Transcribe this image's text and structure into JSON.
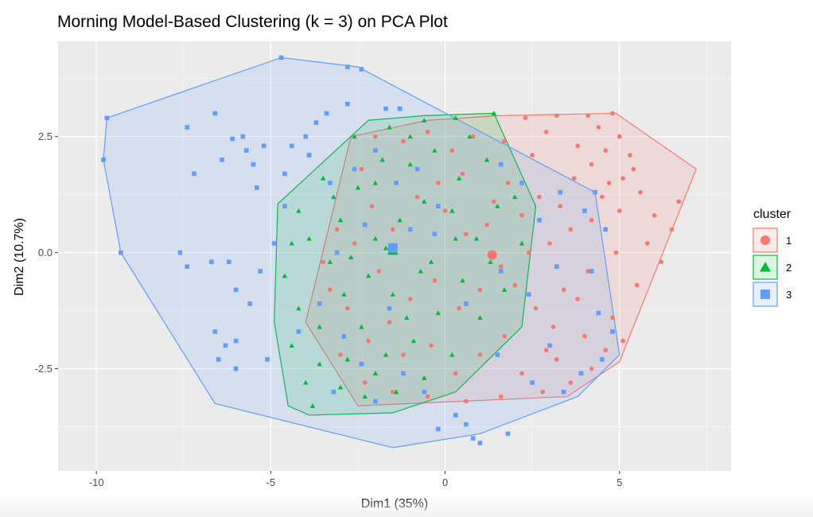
{
  "chart_data": {
    "type": "scatter",
    "title": "Morning Model-Based Clustering (k = 3) on PCA Plot",
    "xlabel": "Dim1 (35%)",
    "ylabel": "Dim2 (10.7%)",
    "xlim": [
      -11.1,
      8.2
    ],
    "ylim": [
      -4.7,
      4.55
    ],
    "xticks": [
      -10,
      -5,
      0,
      5
    ],
    "xtick_labels": [
      "-10",
      "-5",
      "0",
      "5"
    ],
    "yticks": [
      -2.5,
      0,
      2.5
    ],
    "ytick_labels": [
      "-2.5",
      "0.0",
      "2.5"
    ],
    "grid": true,
    "legend": {
      "title": "cluster",
      "position": "right"
    },
    "series": [
      {
        "name": "1",
        "color": "#F8766D",
        "shape": "circle",
        "centroid": [
          1.35,
          -0.05
        ],
        "hull": [
          [
            1.5,
            2.95
          ],
          [
            4.9,
            3.0
          ],
          [
            7.2,
            1.8
          ],
          [
            5.0,
            -2.35
          ],
          [
            3.5,
            -3.1
          ],
          [
            -2.5,
            -3.3
          ],
          [
            -4.0,
            -1.5
          ],
          [
            -2.7,
            2.5
          ],
          [
            -0.5,
            2.85
          ]
        ],
        "points": [
          [
            2.3,
            2.9
          ],
          [
            3.2,
            2.95
          ],
          [
            4.1,
            2.95
          ],
          [
            4.8,
            3.0
          ],
          [
            4.4,
            2.7
          ],
          [
            5.0,
            2.5
          ],
          [
            3.8,
            2.3
          ],
          [
            4.6,
            2.2
          ],
          [
            5.3,
            2.1
          ],
          [
            4.2,
            1.9
          ],
          [
            5.1,
            1.6
          ],
          [
            4.7,
            1.5
          ],
          [
            5.6,
            1.3
          ],
          [
            6.7,
            1.1
          ],
          [
            6.5,
            0.5
          ],
          [
            5.8,
            0.2
          ],
          [
            6.2,
            -0.2
          ],
          [
            5.0,
            0.9
          ],
          [
            4.9,
            0.0
          ],
          [
            5.5,
            -0.7
          ],
          [
            4.8,
            -1.4
          ],
          [
            5.1,
            -1.9
          ],
          [
            4.6,
            -2.1
          ],
          [
            4.2,
            -2.5
          ],
          [
            3.6,
            -2.8
          ],
          [
            2.9,
            -2.1
          ],
          [
            3.1,
            -1.6
          ],
          [
            2.6,
            -1.2
          ],
          [
            3.4,
            -0.8
          ],
          [
            3.8,
            -1.0
          ],
          [
            4.1,
            -0.4
          ],
          [
            3.0,
            0.2
          ],
          [
            3.6,
            0.5
          ],
          [
            4.2,
            0.7
          ],
          [
            3.3,
            1.0
          ],
          [
            2.7,
            1.2
          ],
          [
            2.2,
            0.8
          ],
          [
            1.8,
            1.5
          ],
          [
            2.5,
            2.1
          ],
          [
            1.7,
            2.4
          ],
          [
            0.8,
            2.5
          ],
          [
            0.2,
            2.2
          ],
          [
            -0.5,
            2.6
          ],
          [
            -1.2,
            2.4
          ],
          [
            -2.0,
            2.5
          ],
          [
            -2.4,
            1.8
          ],
          [
            -2.1,
            1.0
          ],
          [
            -1.5,
            0.5
          ],
          [
            -0.8,
            1.2
          ],
          [
            0.0,
            0.9
          ],
          [
            0.6,
            0.4
          ],
          [
            1.2,
            0.6
          ],
          [
            1.6,
            -0.3
          ],
          [
            1.0,
            -0.8
          ],
          [
            0.4,
            -1.2
          ],
          [
            -0.3,
            -0.6
          ],
          [
            -1.0,
            -1.0
          ],
          [
            -1.6,
            -1.5
          ],
          [
            -2.2,
            -1.9
          ],
          [
            -2.8,
            -1.2
          ],
          [
            -3.3,
            -0.8
          ],
          [
            -3.5,
            -0.2
          ],
          [
            -3.1,
            0.5
          ],
          [
            -2.6,
            0.2
          ],
          [
            -1.9,
            -0.4
          ],
          [
            -1.2,
            -2.2
          ],
          [
            -0.4,
            -2.0
          ],
          [
            0.3,
            -2.6
          ],
          [
            1.0,
            -2.2
          ],
          [
            1.7,
            -1.8
          ],
          [
            2.2,
            -2.6
          ],
          [
            2.8,
            -3.0
          ],
          [
            1.6,
            -3.1
          ],
          [
            0.6,
            -3.2
          ],
          [
            -0.5,
            -3.1
          ],
          [
            -1.5,
            -3.0
          ],
          [
            -2.3,
            -2.8
          ],
          [
            -3.0,
            -2.2
          ],
          [
            2.0,
            -0.7
          ],
          [
            2.4,
            0.0
          ],
          [
            1.4,
            1.1
          ],
          [
            0.5,
            1.7
          ],
          [
            -0.2,
            1.5
          ],
          [
            3.7,
            1.6
          ],
          [
            4.5,
            1.2
          ],
          [
            4.0,
            -1.8
          ],
          [
            3.2,
            -2.3
          ],
          [
            5.4,
            1.8
          ],
          [
            6.0,
            0.8
          ],
          [
            2.9,
            2.6
          ]
        ]
      },
      {
        "name": "2",
        "color": "#00BA38",
        "shape": "triangle",
        "centroid": [
          -1.5,
          0.05
        ],
        "hull": [
          [
            1.4,
            3.0
          ],
          [
            -0.6,
            2.95
          ],
          [
            -2.2,
            2.85
          ],
          [
            -4.8,
            1.05
          ],
          [
            -4.9,
            -1.5
          ],
          [
            -4.5,
            -3.3
          ],
          [
            -3.9,
            -3.5
          ],
          [
            -1.5,
            -3.45
          ],
          [
            0.3,
            -3.0
          ],
          [
            2.2,
            -1.6
          ],
          [
            2.6,
            1.0
          ]
        ],
        "points": [
          [
            1.4,
            3.0
          ],
          [
            0.3,
            2.9
          ],
          [
            -0.6,
            2.85
          ],
          [
            -1.6,
            2.7
          ],
          [
            -2.6,
            2.5
          ],
          [
            -3.5,
            1.6
          ],
          [
            -4.2,
            0.9
          ],
          [
            -4.4,
            0.2
          ],
          [
            -4.6,
            -0.5
          ],
          [
            -4.2,
            -1.2
          ],
          [
            -4.4,
            -2.0
          ],
          [
            -4.0,
            -2.8
          ],
          [
            -3.8,
            -3.3
          ],
          [
            -3.0,
            -2.9
          ],
          [
            -2.3,
            -3.1
          ],
          [
            -1.4,
            -3.0
          ],
          [
            -0.6,
            -2.7
          ],
          [
            0.2,
            -2.2
          ],
          [
            1.0,
            -1.4
          ],
          [
            1.7,
            -0.8
          ],
          [
            2.2,
            0.2
          ],
          [
            2.0,
            1.2
          ],
          [
            1.2,
            2.0
          ],
          [
            0.4,
            1.6
          ],
          [
            -0.3,
            2.2
          ],
          [
            -1.0,
            1.9
          ],
          [
            -1.8,
            2.0
          ],
          [
            -2.5,
            1.4
          ],
          [
            -3.0,
            0.7
          ],
          [
            -3.3,
            -0.2
          ],
          [
            -2.9,
            -0.9
          ],
          [
            -2.4,
            -1.6
          ],
          [
            -1.7,
            -2.2
          ],
          [
            -0.9,
            -1.9
          ],
          [
            -0.2,
            -1.3
          ],
          [
            0.5,
            -0.6
          ],
          [
            0.9,
            0.3
          ],
          [
            0.2,
            0.9
          ],
          [
            -0.6,
            1.1
          ],
          [
            -1.3,
            0.7
          ],
          [
            -2.0,
            0.3
          ],
          [
            -2.2,
            -0.5
          ],
          [
            -1.5,
            -0.9
          ],
          [
            -0.7,
            -0.4
          ],
          [
            -1.1,
            -1.4
          ],
          [
            -2.8,
            -2.3
          ],
          [
            -3.6,
            -1.6
          ],
          [
            -3.9,
            0.3
          ],
          [
            -3.2,
            1.2
          ],
          [
            -2.0,
            1.5
          ],
          [
            -1.0,
            2.5
          ],
          [
            0.7,
            2.5
          ],
          [
            1.5,
            1.0
          ],
          [
            1.3,
            -0.2
          ],
          [
            0.3,
            0.3
          ],
          [
            -0.4,
            -0.2
          ],
          [
            -1.7,
            0.1
          ],
          [
            -2.7,
            -0.1
          ],
          [
            -3.6,
            -2.4
          ],
          [
            -2.0,
            -2.6
          ]
        ]
      },
      {
        "name": "3",
        "color": "#619CFF",
        "shape": "square",
        "centroid": [
          -1.5,
          0.1
        ],
        "hull": [
          [
            -4.7,
            4.2
          ],
          [
            -2.5,
            4.0
          ],
          [
            4.3,
            1.3
          ],
          [
            5.0,
            -2.2
          ],
          [
            3.8,
            -3.1
          ],
          [
            1.0,
            -3.9
          ],
          [
            -1.5,
            -4.2
          ],
          [
            -6.6,
            -3.25
          ],
          [
            -9.3,
            0.0
          ],
          [
            -9.8,
            2.0
          ],
          [
            -9.7,
            2.9
          ]
        ],
        "points": [
          [
            -4.7,
            4.2
          ],
          [
            -2.8,
            4.0
          ],
          [
            -2.4,
            3.95
          ],
          [
            -2.8,
            3.2
          ],
          [
            -1.7,
            3.1
          ],
          [
            -1.3,
            3.1
          ],
          [
            -6.6,
            3.0
          ],
          [
            -7.4,
            2.7
          ],
          [
            -7.2,
            1.7
          ],
          [
            -6.4,
            2.0
          ],
          [
            -6.1,
            2.45
          ],
          [
            -5.8,
            2.5
          ],
          [
            -5.7,
            2.2
          ],
          [
            -5.5,
            1.9
          ],
          [
            -5.2,
            2.3
          ],
          [
            -5.4,
            1.4
          ],
          [
            -4.6,
            1.7
          ],
          [
            -4.4,
            2.3
          ],
          [
            -4.0,
            2.5
          ],
          [
            -3.7,
            2.8
          ],
          [
            -3.4,
            3.0
          ],
          [
            -3.9,
            2.1
          ],
          [
            -3.3,
            1.5
          ],
          [
            -2.6,
            1.8
          ],
          [
            -2.0,
            2.2
          ],
          [
            -1.4,
            1.5
          ],
          [
            -0.8,
            1.8
          ],
          [
            -0.2,
            1.0
          ],
          [
            -1.0,
            0.5
          ],
          [
            -2.3,
            0.6
          ],
          [
            -3.1,
            0.0
          ],
          [
            -4.6,
            1.0
          ],
          [
            -4.9,
            0.2
          ],
          [
            -5.3,
            -0.4
          ],
          [
            -6.2,
            -0.2
          ],
          [
            -6.0,
            -0.8
          ],
          [
            -6.7,
            -0.2
          ],
          [
            -5.6,
            -1.1
          ],
          [
            -6.0,
            -1.9
          ],
          [
            -6.3,
            -2.0
          ],
          [
            -6.6,
            -1.7
          ],
          [
            -6.5,
            -2.3
          ],
          [
            -6.0,
            -2.5
          ],
          [
            -5.1,
            -2.3
          ],
          [
            -4.2,
            -1.7
          ],
          [
            -3.6,
            -1.1
          ],
          [
            -2.9,
            -1.8
          ],
          [
            -2.4,
            -2.4
          ],
          [
            -3.2,
            -3.0
          ],
          [
            -2.0,
            -3.2
          ],
          [
            -1.2,
            -2.6
          ],
          [
            -0.6,
            -3.0
          ],
          [
            0.3,
            -3.5
          ],
          [
            0.6,
            -3.7
          ],
          [
            0.8,
            -4.0
          ],
          [
            1.0,
            -4.1
          ],
          [
            1.8,
            -3.9
          ],
          [
            -0.2,
            -3.8
          ],
          [
            1.5,
            -2.2
          ],
          [
            2.5,
            -2.8
          ],
          [
            3.0,
            -2.0
          ],
          [
            3.4,
            -3.0
          ],
          [
            3.9,
            -2.6
          ],
          [
            4.4,
            -1.3
          ],
          [
            4.5,
            -2.3
          ],
          [
            4.8,
            -1.7
          ],
          [
            4.2,
            -0.4
          ],
          [
            4.6,
            0.5
          ],
          [
            3.2,
            -0.3
          ],
          [
            2.4,
            -0.9
          ],
          [
            1.6,
            -0.4
          ],
          [
            2.7,
            0.7
          ],
          [
            4.0,
            0.9
          ],
          [
            4.3,
            1.3
          ],
          [
            3.3,
            1.3
          ],
          [
            2.2,
            1.5
          ],
          [
            1.6,
            1.9
          ],
          [
            -0.3,
            0.4
          ],
          [
            0.6,
            -1.1
          ],
          [
            -1.6,
            -1.2
          ],
          [
            -9.8,
            2.0
          ],
          [
            -9.7,
            2.9
          ],
          [
            -9.3,
            0.0
          ],
          [
            -7.6,
            0.0
          ],
          [
            -7.4,
            -0.3
          ]
        ]
      }
    ]
  }
}
